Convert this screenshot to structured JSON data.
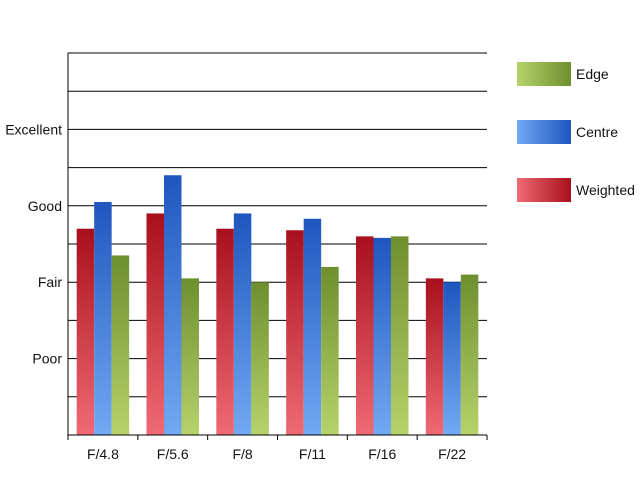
{
  "chart_data": {
    "type": "bar",
    "categories": [
      "F/4.8",
      "F/5.6",
      "F/8",
      "F/11",
      "F/16",
      "F/22"
    ],
    "series": [
      {
        "name": "Weighted",
        "values": [
          2.7,
          2.9,
          2.7,
          2.68,
          2.6,
          2.05
        ],
        "color": "#d9333f"
      },
      {
        "name": "Centre",
        "values": [
          3.05,
          3.4,
          2.9,
          2.83,
          2.58,
          2.0
        ],
        "color": "#3f7fdc"
      },
      {
        "name": "Edge",
        "values": [
          2.35,
          2.05,
          2.0,
          2.2,
          2.6,
          2.1
        ],
        "color": "#8fb04a"
      }
    ],
    "legend_order": [
      "Edge",
      "Centre",
      "Weighted"
    ],
    "legend_placement": "right",
    "y_tick_labels": [
      {
        "value": 1,
        "label": "Poor"
      },
      {
        "value": 2,
        "label": "Fair"
      },
      {
        "value": 3,
        "label": "Good"
      },
      {
        "value": 4,
        "label": "Excellent"
      }
    ],
    "ylim": [
      0,
      5
    ],
    "y_grid_step": 0.5,
    "grid": true,
    "title": "",
    "xlabel": "",
    "ylabel": ""
  }
}
